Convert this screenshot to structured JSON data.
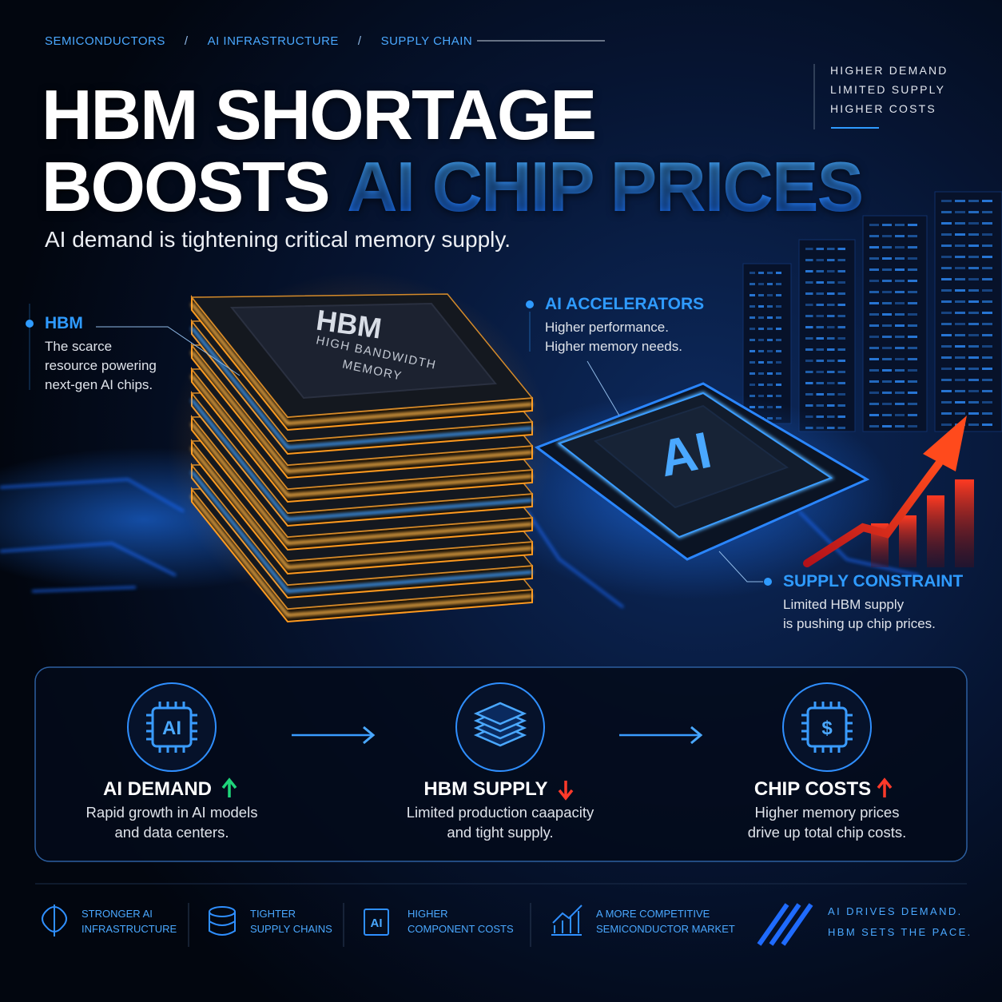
{
  "breadcrumb": {
    "items": [
      "SEMICONDUCTORS",
      "AI INFRASTRUCTURE",
      "SUPPLY CHAIN"
    ],
    "separator": "/"
  },
  "side_note": [
    "HIGHER DEMAND",
    "LIMITED SUPPLY",
    "HIGHER COSTS"
  ],
  "title": {
    "line1": "HBM SHORTAGE",
    "line2": "BOOSTS",
    "highlight": "AI CHIP PRICES"
  },
  "subtitle": "AI demand is tightening critical memory supply.",
  "illustration": {
    "hbm_chip": {
      "label": "HBM",
      "sublabel": [
        "HIGH BANDWIDTH",
        "MEMORY"
      ]
    },
    "ai_chip": {
      "label": "AI"
    }
  },
  "callouts": [
    {
      "title": "HBM",
      "lines": [
        "The scarce",
        "resource powering",
        "next-gen AI chips."
      ]
    },
    {
      "title": "AI ACCELERATORS",
      "lines": [
        "Higher performance.",
        "Higher memory needs."
      ]
    },
    {
      "title": "SUPPLY CONSTRAINT",
      "lines": [
        "Limited HBM supply",
        "is pushing up chip prices."
      ]
    }
  ],
  "flow": [
    {
      "icon_text": "AI",
      "title": "AI DEMAND",
      "trend": "up",
      "lines": [
        "Rapid growth in AI models",
        "and data centers."
      ]
    },
    {
      "title": "HBM SUPPLY",
      "trend": "down",
      "lines": [
        "Limited production caapacity",
        "and tight supply."
      ]
    },
    {
      "icon_text": "$",
      "title": "CHIP COSTS",
      "trend": "up",
      "lines": [
        "Higher memory prices",
        "drive up total chip costs."
      ]
    }
  ],
  "footer": {
    "items": [
      {
        "lines": [
          "STRONGER AI",
          "INFRASTRUCTURE"
        ]
      },
      {
        "lines": [
          "TIGHTER",
          "SUPPLY CHAINS"
        ]
      },
      {
        "icon_text": "AI",
        "lines": [
          "HIGHER",
          "COMPONENT COSTS"
        ]
      },
      {
        "lines": [
          "A MORE COMPETITIVE",
          "SEMICONDUCTOR MARKET"
        ]
      }
    ],
    "tagline": [
      "AI DRIVES DEMAND.",
      "HBM SETS THE PACE."
    ]
  }
}
